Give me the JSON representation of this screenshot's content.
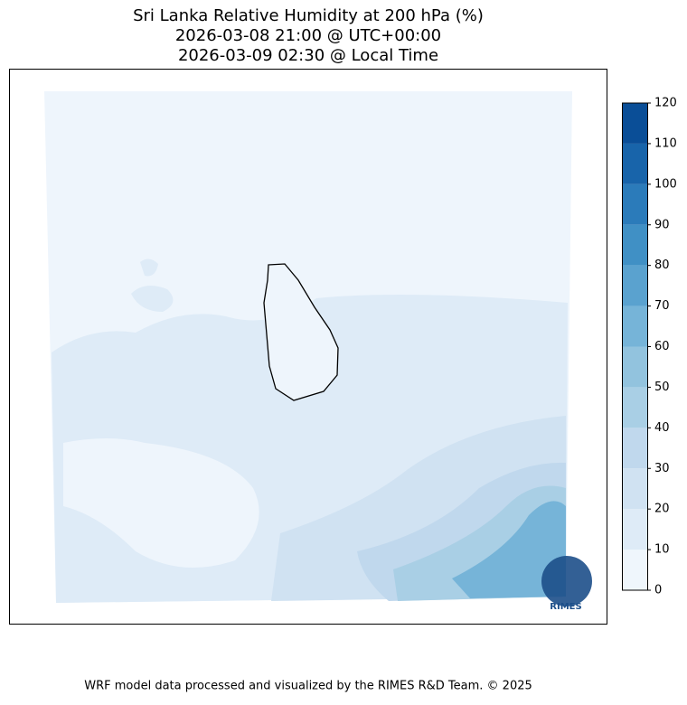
{
  "title": [
    "Sri Lanka Relative Humidity at 200 hPa (%)",
    "2026-03-08 21:00 @ UTC+00:00",
    "2026-03-09 02:30 @ Local Time"
  ],
  "colorbar": {
    "ticks": [
      0,
      10,
      20,
      30,
      40,
      50,
      60,
      70,
      80,
      90,
      100,
      110,
      120
    ],
    "colors": [
      "#eff6fc",
      "#deebf7",
      "#d0e2f2",
      "#c0d8ed",
      "#a9cfe5",
      "#92c3de",
      "#76b4d8",
      "#5aa2cf",
      "#4090c5",
      "#2b7bba",
      "#1864aa",
      "#0a4e97"
    ]
  },
  "logo": "RIMES",
  "footer": "WRF model data processed and visualized by the RIMES R&D Team. © 2025"
}
